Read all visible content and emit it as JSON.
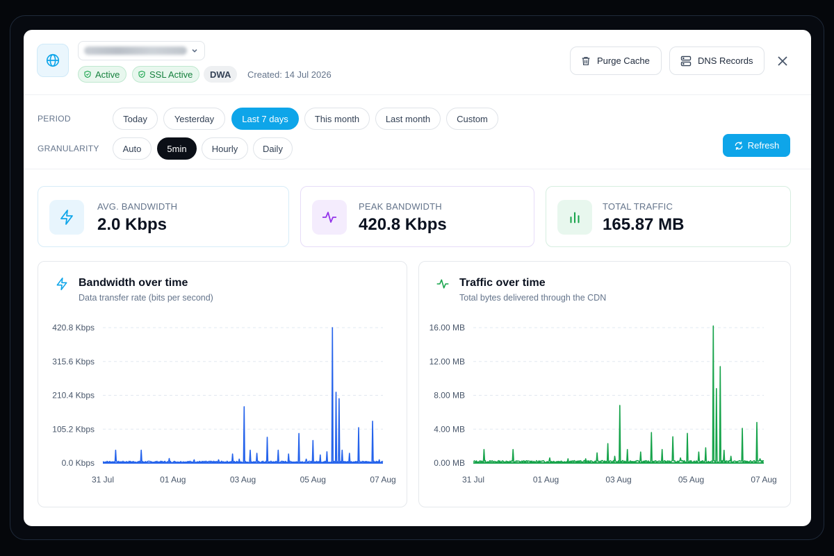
{
  "header": {
    "status_badge": "Active",
    "ssl_badge": "SSL Active",
    "code_badge": "DWA",
    "created": "Created: 14 Jul 2026",
    "purge_label": "Purge Cache",
    "dns_label": "DNS Records"
  },
  "filters": {
    "period_label": "PERIOD",
    "granularity_label": "GRANULARITY",
    "periods": [
      "Today",
      "Yesterday",
      "Last 7 days",
      "This month",
      "Last month",
      "Custom"
    ],
    "period_selected": "Last 7 days",
    "granularities": [
      "Auto",
      "5min",
      "Hourly",
      "Daily"
    ],
    "granularity_selected": "5min",
    "refresh_label": "Refresh"
  },
  "stats": [
    {
      "label": "AVG. BANDWIDTH",
      "value": "2.0 Kbps",
      "icon": "bolt-icon",
      "color": "#0ea5e9"
    },
    {
      "label": "PEAK BANDWIDTH",
      "value": "420.8 Kbps",
      "icon": "pulse-icon",
      "color": "#9333ea"
    },
    {
      "label": "TOTAL TRAFFIC",
      "value": "165.87 MB",
      "icon": "bar-chart-icon",
      "color": "#16a34a"
    }
  ],
  "colors": {
    "accent": "#0ea5e9",
    "bandwidth_line": "#2563eb",
    "traffic_line": "#16a34a"
  },
  "chart_data": [
    {
      "type": "line",
      "title": "Bandwidth over time",
      "subtitle": "Data transfer rate (bits per second)",
      "y_ticks": [
        "0.0 Kbps",
        "105.2 Kbps",
        "210.4 Kbps",
        "315.6 Kbps",
        "420.8 Kbps"
      ],
      "ylim": [
        0,
        420.8
      ],
      "x_ticks": [
        {
          "label": "31 Jul",
          "x": 0.0
        },
        {
          "label": "01 Aug",
          "x": 1.0
        },
        {
          "label": "03 Aug",
          "x": 2.0
        },
        {
          "label": "05 Aug",
          "x": 3.0
        },
        {
          "label": "07 Aug",
          "x": 4.0
        }
      ],
      "xlim": [
        0,
        4
      ],
      "baseline": 3,
      "spikes": [
        [
          0.18,
          40
        ],
        [
          0.55,
          40
        ],
        [
          0.95,
          14
        ],
        [
          1.3,
          10
        ],
        [
          1.65,
          10
        ],
        [
          1.85,
          28
        ],
        [
          1.95,
          12
        ],
        [
          2.02,
          175
        ],
        [
          2.1,
          40
        ],
        [
          2.2,
          30
        ],
        [
          2.35,
          80
        ],
        [
          2.5,
          40
        ],
        [
          2.65,
          28
        ],
        [
          2.8,
          92
        ],
        [
          2.9,
          12
        ],
        [
          3.0,
          70
        ],
        [
          3.1,
          25
        ],
        [
          3.2,
          35
        ],
        [
          3.28,
          420.8
        ],
        [
          3.33,
          220
        ],
        [
          3.37,
          200
        ],
        [
          3.42,
          40
        ],
        [
          3.52,
          30
        ],
        [
          3.65,
          110
        ],
        [
          3.85,
          130
        ],
        [
          3.95,
          10
        ]
      ]
    },
    {
      "type": "line",
      "title": "Traffic over time",
      "subtitle": "Total bytes delivered through the CDN",
      "y_ticks": [
        "0.00 MB",
        "4.00 MB",
        "8.00 MB",
        "12.00 MB",
        "16.00 MB"
      ],
      "ylim": [
        0,
        16
      ],
      "x_ticks": [
        {
          "label": "31 Jul",
          "x": 0.0
        },
        {
          "label": "01 Aug",
          "x": 1.0
        },
        {
          "label": "03 Aug",
          "x": 2.0
        },
        {
          "label": "05 Aug",
          "x": 3.0
        },
        {
          "label": "07 Aug",
          "x": 4.0
        }
      ],
      "xlim": [
        0,
        4
      ],
      "baseline": 0.15,
      "spikes": [
        [
          0.15,
          1.6
        ],
        [
          0.55,
          1.6
        ],
        [
          1.05,
          0.6
        ],
        [
          1.3,
          0.5
        ],
        [
          1.55,
          0.5
        ],
        [
          1.7,
          1.2
        ],
        [
          1.85,
          2.3
        ],
        [
          1.95,
          0.8
        ],
        [
          2.02,
          6.8
        ],
        [
          2.12,
          1.6
        ],
        [
          2.3,
          1.3
        ],
        [
          2.45,
          3.6
        ],
        [
          2.6,
          1.6
        ],
        [
          2.75,
          3.1
        ],
        [
          2.85,
          0.6
        ],
        [
          2.95,
          3.5
        ],
        [
          3.1,
          1.3
        ],
        [
          3.2,
          1.8
        ],
        [
          3.3,
          16.2
        ],
        [
          3.35,
          8.8
        ],
        [
          3.4,
          11.4
        ],
        [
          3.45,
          1.5
        ],
        [
          3.55,
          0.8
        ],
        [
          3.7,
          4.1
        ],
        [
          3.9,
          4.8
        ],
        [
          3.95,
          0.5
        ]
      ]
    }
  ]
}
